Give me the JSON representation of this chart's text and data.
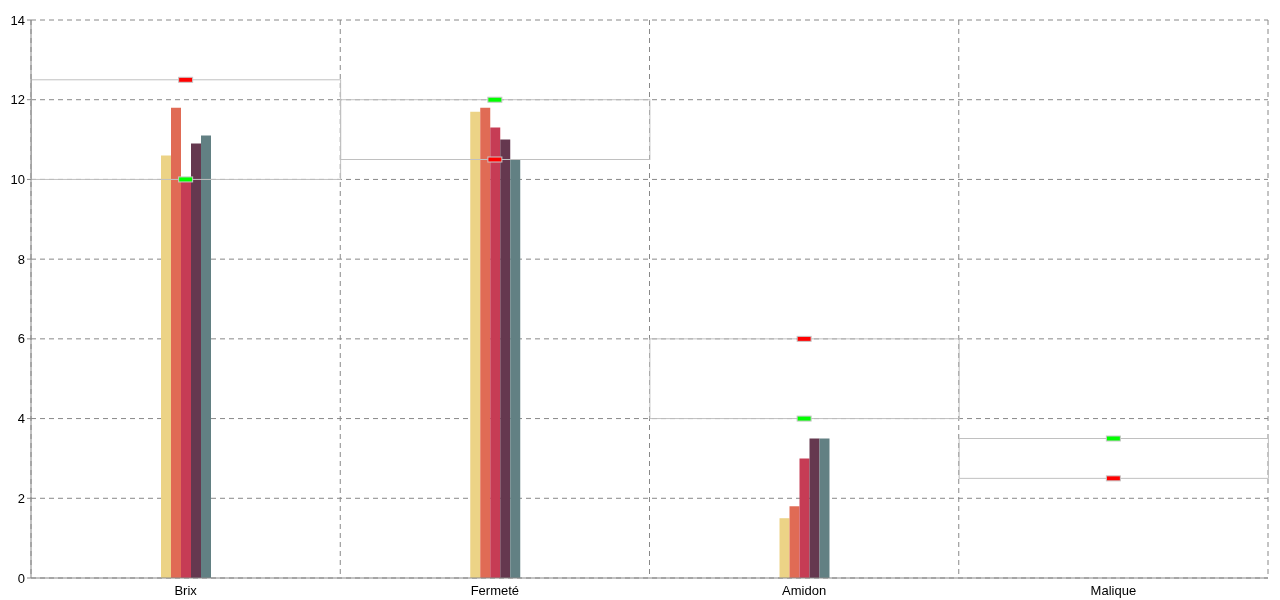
{
  "chart_data": {
    "type": "bar",
    "categories": [
      "Brix",
      "Fermeté",
      "Amidon",
      "Malique"
    ],
    "series": [
      {
        "color": "#ecd386",
        "values": [
          10.6,
          11.7,
          1.5,
          0
        ]
      },
      {
        "color": "#e06b55",
        "values": [
          11.8,
          11.8,
          1.8,
          0
        ]
      },
      {
        "color": "#c63c55",
        "values": [
          10.0,
          11.3,
          3.0,
          0
        ]
      },
      {
        "color": "#65384f",
        "values": [
          10.9,
          11.0,
          3.5,
          0
        ]
      },
      {
        "color": "#628083",
        "values": [
          11.1,
          10.5,
          3.5,
          0
        ]
      },
      {
        "type": "bar",
        "color": "#c0c0c0",
        "base": [
          10,
          10.5,
          4,
          2.5
        ],
        "values": [
          2.5,
          1.5,
          2,
          1
        ]
      },
      {
        "type": "scatter",
        "color": "#00ff00",
        "x": [
          "Brix",
          "Fermeté",
          "Amidon",
          "Malique"
        ],
        "values": [
          10,
          12,
          4,
          3.5
        ]
      },
      {
        "type": "scatter",
        "color": "#ff0000",
        "x": [
          "Brix",
          "Fermeté",
          "Amidon",
          "Malique"
        ],
        "values": [
          12.5,
          10.5,
          6,
          2.5
        ]
      }
    ],
    "marker": "square",
    "ylim": [
      0,
      14
    ],
    "yticks": [
      0,
      2,
      4,
      6,
      8,
      10,
      12,
      14
    ],
    "grid": true
  }
}
